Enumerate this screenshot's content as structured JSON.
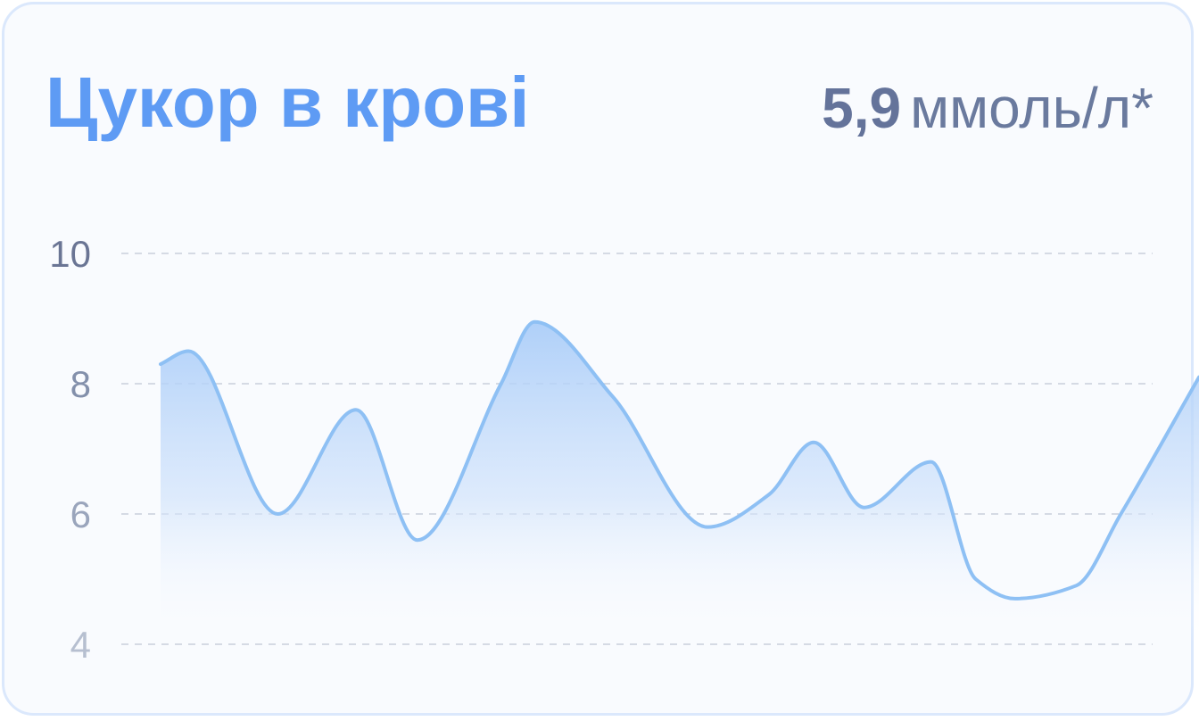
{
  "card": {
    "title": "Цукор в крові",
    "current_value": "5,9",
    "current_unit": "ммоль/л*"
  },
  "chart_data": {
    "type": "area",
    "title": "Цукор в крові",
    "xlabel": "",
    "ylabel": "",
    "ylim": [
      4,
      10
    ],
    "yticks": [
      {
        "value": 10,
        "label": "10",
        "color": "#6a7594"
      },
      {
        "value": 8,
        "label": "8",
        "color": "#8390ab"
      },
      {
        "value": 6,
        "label": "6",
        "color": "#9aa5bc"
      },
      {
        "value": 4,
        "label": "4",
        "color": "#b6bfd0"
      }
    ],
    "grid": true,
    "legend": "none",
    "series": [
      {
        "x": [
          0,
          0.5,
          2.1,
          3.5,
          4.6,
          6.1,
          6.7,
          8.1,
          9.8,
          10.9,
          11.7,
          12.6,
          13.8,
          14.6,
          15.3,
          16.4,
          17.2,
          18.6
        ],
        "values": [
          8.3,
          8.5,
          6.0,
          7.6,
          5.6,
          8.0,
          8.95,
          7.8,
          5.8,
          6.3,
          7.1,
          6.1,
          6.8,
          5.0,
          4.7,
          4.9,
          6.0,
          8.1
        ],
        "color": "#8ec0f4"
      }
    ]
  }
}
